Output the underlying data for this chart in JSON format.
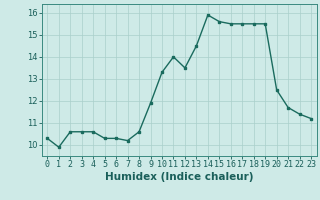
{
  "x": [
    0,
    1,
    2,
    3,
    4,
    5,
    6,
    7,
    8,
    9,
    10,
    11,
    12,
    13,
    14,
    15,
    16,
    17,
    18,
    19,
    20,
    21,
    22,
    23
  ],
  "y": [
    10.3,
    9.9,
    10.6,
    10.6,
    10.6,
    10.3,
    10.3,
    10.2,
    10.6,
    11.9,
    13.3,
    14.0,
    13.5,
    14.5,
    15.9,
    15.6,
    15.5,
    15.5,
    15.5,
    15.5,
    12.5,
    11.7,
    11.4,
    11.2
  ],
  "line_color": "#1a6b5e",
  "marker": "s",
  "marker_size": 2.0,
  "bg_color": "#ceeae7",
  "grid_color": "#aacfcb",
  "xlabel": "Humidex (Indice chaleur)",
  "ylim": [
    9.5,
    16.4
  ],
  "xlim": [
    -0.5,
    23.5
  ],
  "yticks": [
    10,
    11,
    12,
    13,
    14,
    15,
    16
  ],
  "xticks": [
    0,
    1,
    2,
    3,
    4,
    5,
    6,
    7,
    8,
    9,
    10,
    11,
    12,
    13,
    14,
    15,
    16,
    17,
    18,
    19,
    20,
    21,
    22,
    23
  ],
  "xlabel_fontsize": 7.5,
  "tick_fontsize": 6.0,
  "line_width": 1.0
}
